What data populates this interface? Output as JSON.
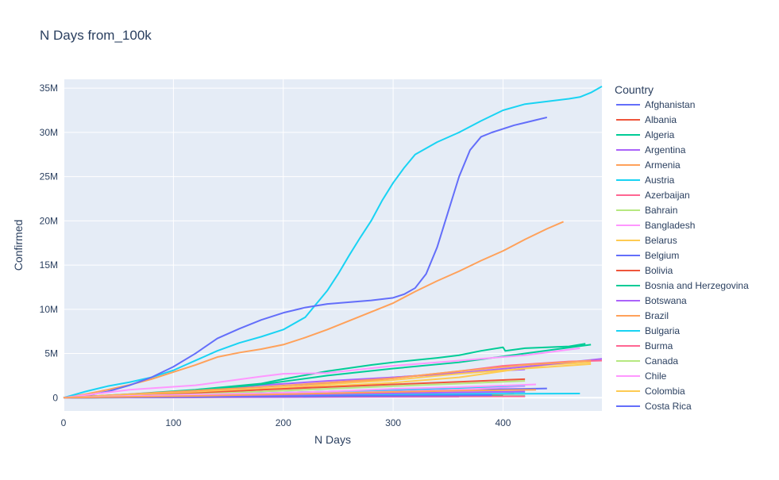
{
  "chart_data": {
    "type": "line",
    "title": "N Days from_100k",
    "xlabel": "N Days",
    "ylabel": "Confirmed",
    "xlim": [
      0,
      490
    ],
    "ylim": [
      -1500000,
      36000000
    ],
    "xticks": [
      0,
      100,
      200,
      300,
      400
    ],
    "xtick_labels": [
      "0",
      "100",
      "200",
      "300",
      "400"
    ],
    "yticks": [
      0,
      5000000,
      10000000,
      15000000,
      20000000,
      25000000,
      30000000,
      35000000
    ],
    "ytick_labels": [
      "0",
      "5M",
      "10M",
      "15M",
      "20M",
      "25M",
      "30M",
      "35M"
    ],
    "grid": true,
    "legend_title": "Country",
    "legend_position": "right",
    "series": [
      {
        "name": "Afghanistan",
        "color": "#636efa",
        "x": [
          0,
          60,
          120,
          180,
          240,
          300,
          360,
          420
        ],
        "y": [
          0,
          60000,
          90000,
          110000,
          130000,
          140000,
          150000,
          160000
        ]
      },
      {
        "name": "Albania",
        "color": "#EF553B",
        "x": [
          0,
          60,
          120,
          180,
          240,
          300,
          360,
          400
        ],
        "y": [
          0,
          40000,
          80000,
          120000,
          150000,
          170000,
          180000,
          190000
        ]
      },
      {
        "name": "Algeria",
        "color": "#00cc96",
        "x": [
          0,
          60,
          120,
          180,
          240,
          300,
          360,
          420
        ],
        "y": [
          0,
          50000,
          80000,
          100000,
          120000,
          140000,
          160000,
          180000
        ]
      },
      {
        "name": "Argentina",
        "color": "#ab63fa",
        "x": [
          0,
          60,
          120,
          180,
          240,
          300,
          360,
          420
        ],
        "y": [
          0,
          350000,
          800000,
          1400000,
          1900000,
          2300000,
          2800000,
          3200000
        ]
      },
      {
        "name": "Armenia",
        "color": "#FFA15A",
        "x": [
          0,
          60,
          120,
          180,
          240,
          300,
          350
        ],
        "y": [
          0,
          40000,
          80000,
          120000,
          160000,
          190000,
          210000
        ]
      },
      {
        "name": "Austria",
        "color": "#19d3f3",
        "x": [
          0,
          60,
          120,
          180,
          240,
          300,
          360,
          420
        ],
        "y": [
          0,
          50000,
          150000,
          300000,
          450000,
          550000,
          620000,
          650000
        ]
      },
      {
        "name": "Azerbaijan",
        "color": "#FF6692",
        "x": [
          0,
          60,
          120,
          180,
          240,
          300,
          360,
          400
        ],
        "y": [
          0,
          40000,
          90000,
          150000,
          230000,
          280000,
          320000,
          340000
        ]
      },
      {
        "name": "Bahrain",
        "color": "#B6E880",
        "x": [
          0,
          60,
          120,
          180,
          240,
          300,
          350
        ],
        "y": [
          0,
          30000,
          60000,
          90000,
          120000,
          150000,
          180000
        ]
      },
      {
        "name": "Bangladesh",
        "color": "#FF97FF",
        "x": [
          0,
          60,
          120,
          180,
          240,
          300,
          360,
          430
        ],
        "y": [
          0,
          150000,
          300000,
          450000,
          550000,
          650000,
          750000,
          1000000
        ]
      },
      {
        "name": "Belarus",
        "color": "#FECB52",
        "x": [
          0,
          60,
          120,
          180,
          240,
          300,
          360,
          420
        ],
        "y": [
          0,
          60000,
          120000,
          180000,
          250000,
          320000,
          380000,
          420000
        ]
      },
      {
        "name": "Belgium",
        "color": "#636efa",
        "x": [
          0,
          60,
          120,
          180,
          240,
          300,
          360,
          420,
          440
        ],
        "y": [
          0,
          100000,
          300000,
          500000,
          700000,
          800000,
          900000,
          1000000,
          1050000
        ]
      },
      {
        "name": "Bolivia",
        "color": "#EF553B",
        "x": [
          0,
          60,
          120,
          180,
          240,
          300,
          360,
          410
        ],
        "y": [
          0,
          50000,
          100000,
          140000,
          180000,
          250000,
          350000,
          450000
        ]
      },
      {
        "name": "Bosnia and Herzegovina",
        "color": "#00cc96",
        "x": [
          0,
          60,
          120,
          180,
          240,
          300,
          360,
          400
        ],
        "y": [
          0,
          30000,
          60000,
          90000,
          120000,
          160000,
          190000,
          200000
        ]
      },
      {
        "name": "Botswana",
        "color": "#ab63fa",
        "x": [
          0,
          60,
          120,
          180,
          240,
          300,
          360
        ],
        "y": [
          0,
          20000,
          40000,
          60000,
          80000,
          100000,
          120000
        ]
      },
      {
        "name": "Brazil",
        "color": "#FFA15A",
        "x": [
          0,
          20,
          40,
          60,
          80,
          100,
          120,
          140,
          160,
          180,
          200,
          220,
          240,
          260,
          280,
          300,
          320,
          340,
          360,
          380,
          400,
          420,
          440,
          455
        ],
        "y": [
          0,
          400000,
          900000,
          1450000,
          2100000,
          2900000,
          3700000,
          4600000,
          5100000,
          5500000,
          6000000,
          6800000,
          7700000,
          8700000,
          9700000,
          10700000,
          12000000,
          13200000,
          14300000,
          15500000,
          16600000,
          17900000,
          19100000,
          19900000
        ]
      },
      {
        "name": "Bulgaria",
        "color": "#19d3f3",
        "x": [
          0,
          60,
          120,
          180,
          240,
          300,
          360,
          420,
          470
        ],
        "y": [
          0,
          40000,
          90000,
          150000,
          250000,
          350000,
          420000,
          450000,
          470000
        ]
      },
      {
        "name": "Burma",
        "color": "#FF6692",
        "x": [
          0,
          60,
          120,
          180,
          240,
          300,
          360,
          420
        ],
        "y": [
          0,
          40000,
          80000,
          120000,
          140000,
          145000,
          150000,
          152000
        ]
      },
      {
        "name": "Canada",
        "color": "#B6E880",
        "x": [
          0,
          60,
          120,
          180,
          240,
          300,
          360,
          420
        ],
        "y": [
          0,
          150000,
          300000,
          450000,
          700000,
          900000,
          1100000,
          1300000
        ]
      },
      {
        "name": "Chile",
        "color": "#FF97FF",
        "x": [
          0,
          60,
          120,
          180,
          240,
          300,
          360,
          420
        ],
        "y": [
          0,
          200000,
          350000,
          450000,
          550000,
          700000,
          900000,
          1300000
        ]
      },
      {
        "name": "Colombia",
        "color": "#FECB52",
        "x": [
          0,
          60,
          120,
          180,
          240,
          300,
          360,
          400,
          440,
          480
        ],
        "y": [
          0,
          300000,
          700000,
          1000000,
          1300000,
          1700000,
          2300000,
          3000000,
          3700000,
          4000000
        ]
      },
      {
        "name": "Costa Rica",
        "color": "#636efa",
        "x": [
          0,
          60,
          120,
          180,
          240,
          300,
          360,
          390
        ],
        "y": [
          0,
          50000,
          100000,
          140000,
          180000,
          220000,
          260000,
          280000
        ]
      },
      {
        "name": "",
        "color": "#19d3f3",
        "x": [
          0,
          20,
          40,
          60,
          80,
          100,
          120,
          140,
          160,
          180,
          200,
          220,
          230,
          240,
          250,
          260,
          270,
          280,
          290,
          300,
          310,
          320,
          340,
          360,
          380,
          400,
          420,
          440,
          460,
          470,
          480,
          490
        ],
        "y": [
          0,
          700000,
          1300000,
          1750000,
          2300000,
          3100000,
          4200000,
          5300000,
          6200000,
          6900000,
          7700000,
          9100000,
          10600000,
          12100000,
          14000000,
          16100000,
          18100000,
          20000000,
          22300000,
          24300000,
          26000000,
          27500000,
          28900000,
          30000000,
          31300000,
          32500000,
          33200000,
          33500000,
          33800000,
          34000000,
          34500000,
          35200000
        ]
      },
      {
        "name": "",
        "color": "#636efa",
        "x": [
          0,
          20,
          40,
          60,
          80,
          100,
          120,
          140,
          160,
          180,
          200,
          220,
          240,
          260,
          280,
          300,
          310,
          320,
          330,
          340,
          350,
          360,
          370,
          380,
          390,
          400,
          410,
          420,
          430,
          440
        ],
        "y": [
          0,
          200000,
          700000,
          1400000,
          2300000,
          3500000,
          5000000,
          6700000,
          7800000,
          8800000,
          9600000,
          10200000,
          10600000,
          10800000,
          11000000,
          11300000,
          11700000,
          12400000,
          14000000,
          17000000,
          21000000,
          25000000,
          28000000,
          29500000,
          30000000,
          30400000,
          30800000,
          31100000,
          31400000,
          31700000
        ]
      },
      {
        "name": "",
        "color": "#00cc96",
        "x": [
          0,
          60,
          120,
          180,
          200,
          240,
          280,
          300,
          340,
          360,
          380,
          400,
          402,
          420,
          460,
          475
        ],
        "y": [
          0,
          400000,
          900000,
          1600000,
          2100000,
          3000000,
          3700000,
          4000000,
          4500000,
          4800000,
          5300000,
          5700000,
          5300000,
          5600000,
          5800000,
          6100000
        ]
      },
      {
        "name": "",
        "color": "#00cc96",
        "x": [
          0,
          60,
          120,
          180,
          240,
          300,
          360,
          420,
          480
        ],
        "y": [
          0,
          350000,
          800000,
          1500000,
          2500000,
          3300000,
          4000000,
          5000000,
          6000000
        ]
      },
      {
        "name": "",
        "color": "#ab63fa",
        "x": [
          0,
          60,
          120,
          180,
          240,
          300,
          360,
          420,
          490
        ],
        "y": [
          0,
          200000,
          500000,
          900000,
          1600000,
          2300000,
          2800000,
          3500000,
          4400000
        ]
      },
      {
        "name": "",
        "color": "#FF6692",
        "x": [
          0,
          60,
          120,
          180,
          240,
          300,
          360,
          400,
          460,
          490
        ],
        "y": [
          0,
          300000,
          600000,
          900000,
          1500000,
          2200000,
          3000000,
          3600000,
          4100000,
          4200000
        ]
      },
      {
        "name": "",
        "color": "#FF97FF",
        "x": [
          0,
          60,
          120,
          180,
          200,
          240,
          300,
          360,
          420,
          470
        ],
        "y": [
          0,
          900000,
          1400000,
          2400000,
          2700000,
          2800000,
          3600000,
          4200000,
          4800000,
          5600000
        ]
      },
      {
        "name": "",
        "color": "#FFA15A",
        "x": [
          0,
          60,
          120,
          180,
          240,
          300,
          360,
          420,
          480
        ],
        "y": [
          0,
          400000,
          800000,
          1200000,
          1700000,
          2200000,
          3000000,
          3700000,
          4200000
        ]
      },
      {
        "name": "",
        "color": "#FECB52",
        "x": [
          0,
          60,
          120,
          180,
          240,
          300,
          360,
          420,
          480
        ],
        "y": [
          0,
          300000,
          600000,
          1000000,
          1500000,
          2000000,
          2700000,
          3300000,
          3800000
        ]
      },
      {
        "name": "",
        "color": "#EF553B",
        "x": [
          0,
          60,
          120,
          180,
          240,
          300,
          360,
          420
        ],
        "y": [
          0,
          200000,
          500000,
          900000,
          1200000,
          1500000,
          1800000,
          2100000
        ]
      },
      {
        "name": "",
        "color": "#B6E880",
        "x": [
          0,
          60,
          120,
          180,
          240,
          300,
          360,
          420
        ],
        "y": [
          0,
          200000,
          400000,
          700000,
          1000000,
          1300000,
          1600000,
          1900000
        ]
      },
      {
        "name": "",
        "color": "#19d3f3",
        "x": [
          0,
          60,
          120,
          180,
          240,
          300,
          360,
          420
        ],
        "y": [
          0,
          150000,
          300000,
          500000,
          700000,
          900000,
          1100000,
          1400000
        ]
      },
      {
        "name": "",
        "color": "#ab63fa",
        "x": [
          0,
          60,
          120,
          180,
          240,
          300,
          360,
          420
        ],
        "y": [
          0,
          100000,
          200000,
          300000,
          400000,
          500000,
          600000,
          700000
        ]
      },
      {
        "name": "",
        "color": "#FF97FF",
        "x": [
          0,
          60,
          120,
          180,
          240,
          300,
          360,
          430
        ],
        "y": [
          0,
          200000,
          350000,
          500000,
          700000,
          1000000,
          1200000,
          1500000
        ]
      },
      {
        "name": "",
        "color": "#FFA15A",
        "x": [
          0,
          60,
          120,
          180,
          240,
          300,
          360,
          430
        ],
        "y": [
          0,
          100000,
          200000,
          350000,
          500000,
          650000,
          800000,
          900000
        ]
      }
    ]
  }
}
